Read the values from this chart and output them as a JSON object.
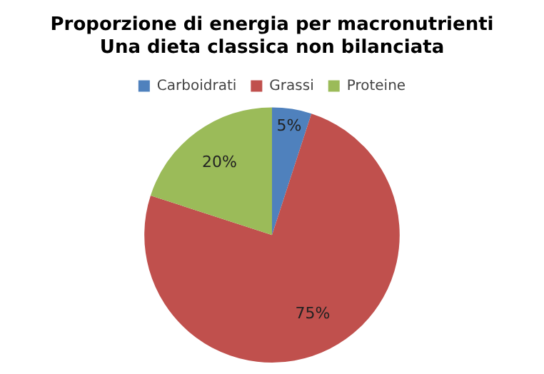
{
  "chart_data": {
    "type": "pie",
    "title": "Proporzione di energia per macronutrienti\nUna dieta classica non bilanciata",
    "categories": [
      "Carboidrati",
      "Grassi",
      "Proteine"
    ],
    "values": [
      5,
      75,
      20
    ],
    "colors": [
      "#4f81bd",
      "#c0504d",
      "#9bbb59"
    ],
    "value_labels": [
      "5%",
      "75%",
      "20%"
    ],
    "legend": "top"
  }
}
